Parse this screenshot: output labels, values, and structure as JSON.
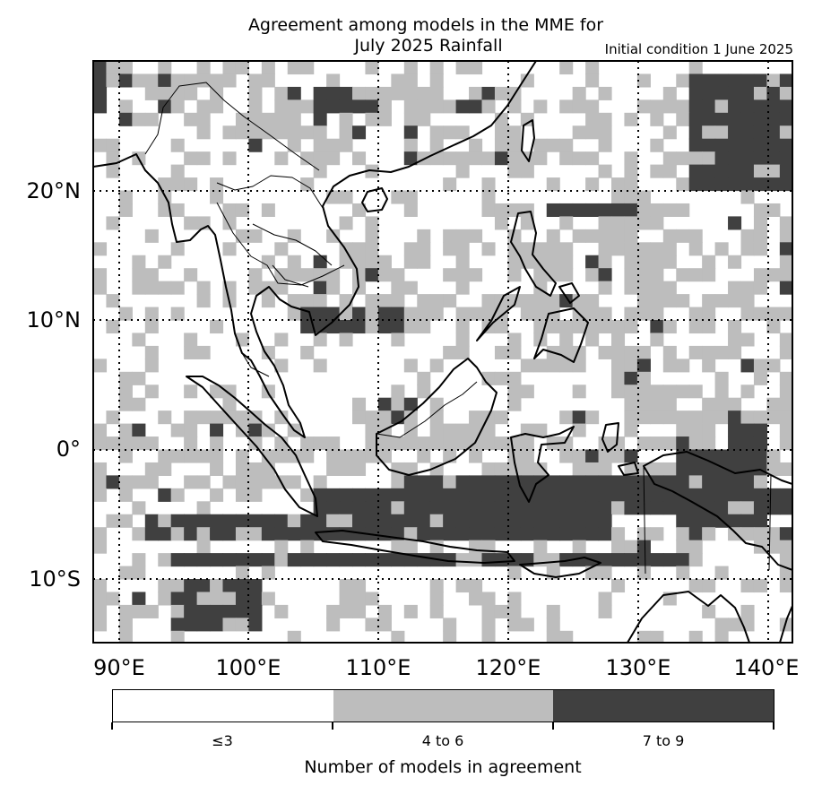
{
  "title": {
    "line1": "Agreement among models in the MME for",
    "line2": "July 2025  Rainfall",
    "init": "Initial condition 1 June 2025"
  },
  "axes": {
    "lat_labels": [
      "20°N",
      "10°N",
      "0°",
      "10°S"
    ],
    "lon_labels": [
      "90°E",
      "100°E",
      "110°E",
      "120°E",
      "130°E",
      "140°E"
    ]
  },
  "colorbar": {
    "title": "Number of models in agreement",
    "labels": [
      "≤3",
      "4 to 6",
      "7 to 9"
    ],
    "colors": [
      "#ffffff",
      "#bdbdbd",
      "#404040"
    ]
  },
  "map": {
    "region": "Southeast Asia",
    "lon_range": [
      88,
      142
    ],
    "lat_range": [
      -15,
      30
    ],
    "gridlines": "dotted",
    "coastlines": true
  }
}
